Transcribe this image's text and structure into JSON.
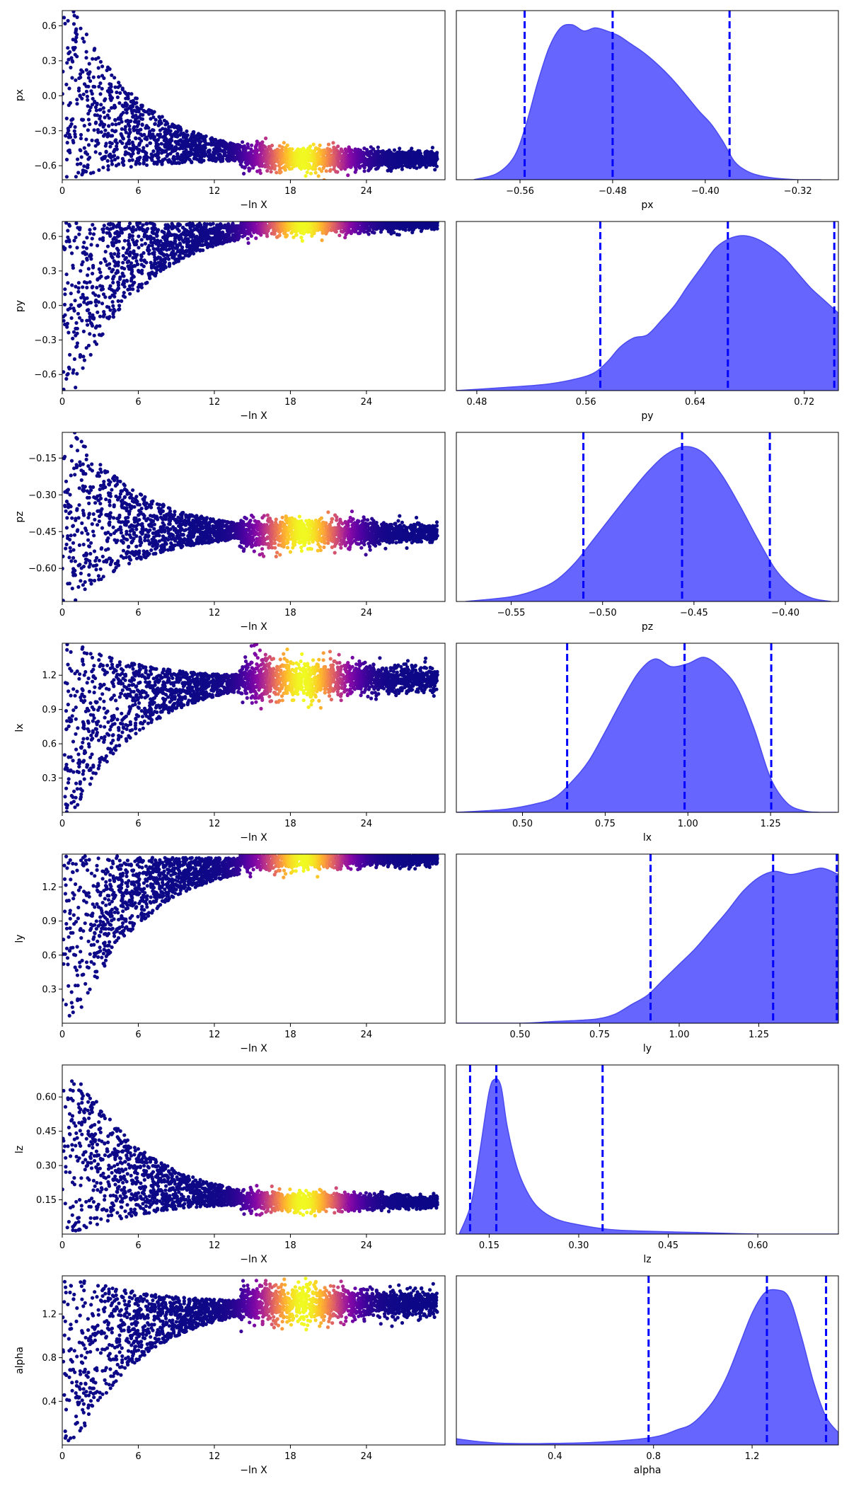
{
  "figure": {
    "trace_xlabel": "−ln X",
    "trace_xticks": [
      "0",
      "6",
      "12",
      "18",
      "24"
    ]
  },
  "colors": {
    "kde_fill": "#6666ff",
    "kde_edge": "#4a4af0",
    "quantile_line": "#0000ff",
    "colormap": [
      "#0d0887",
      "#5302a3",
      "#8b0aa5",
      "#b83289",
      "#db5c68",
      "#f48849",
      "#febd2a",
      "#f0f921"
    ]
  },
  "chart_data": [
    {
      "type": "scatter",
      "param": "px",
      "xlabel": "−ln X",
      "ylabel": "px",
      "xlim": [
        0,
        30.2
      ],
      "ylim": [
        -0.72,
        0.73
      ],
      "xticks": [
        0,
        6,
        12,
        18,
        24
      ],
      "yticks": [
        "0.6",
        "0.3",
        "0.0",
        "−0.3",
        "−0.6"
      ],
      "ytick_values": [
        0.6,
        0.3,
        0.0,
        -0.3,
        -0.6
      ],
      "converge_value": -0.54,
      "converge_spread": 0.05,
      "early_range": [
        -0.72,
        0.73
      ],
      "color_peak_x": 19
    },
    {
      "type": "area",
      "param": "px",
      "xlabel": "px",
      "xlim": [
        -0.615,
        -0.285
      ],
      "xticks": [
        "−0.56",
        "−0.48",
        "−0.40",
        "−0.32"
      ],
      "xtick_values": [
        -0.56,
        -0.48,
        -0.4,
        -0.32
      ],
      "quantiles": [
        -0.556,
        -0.48,
        -0.379
      ],
      "kde_x": [
        -0.6,
        -0.58,
        -0.565,
        -0.555,
        -0.545,
        -0.535,
        -0.525,
        -0.515,
        -0.505,
        -0.495,
        -0.485,
        -0.475,
        -0.465,
        -0.455,
        -0.445,
        -0.435,
        -0.425,
        -0.415,
        -0.405,
        -0.395,
        -0.385,
        -0.375,
        -0.365,
        -0.355,
        -0.34,
        -0.32,
        -0.3
      ],
      "kde_y": [
        0.0,
        0.04,
        0.15,
        0.35,
        0.62,
        0.85,
        0.98,
        1.0,
        0.96,
        0.98,
        0.96,
        0.93,
        0.88,
        0.83,
        0.77,
        0.7,
        0.62,
        0.53,
        0.44,
        0.36,
        0.25,
        0.12,
        0.06,
        0.03,
        0.01,
        0.0,
        0.0
      ]
    },
    {
      "type": "scatter",
      "param": "py",
      "xlabel": "−ln X",
      "ylabel": "py",
      "xlim": [
        0,
        30.2
      ],
      "ylim": [
        -0.74,
        0.73
      ],
      "xticks": [
        0,
        6,
        12,
        18,
        24
      ],
      "yticks": [
        "0.6",
        "0.3",
        "0.0",
        "−0.3",
        "−0.6"
      ],
      "ytick_values": [
        0.6,
        0.3,
        0.0,
        -0.3,
        -0.6
      ],
      "converge_value": 0.71,
      "converge_spread": 0.04,
      "early_range": [
        -0.74,
        0.73
      ],
      "color_peak_x": 19
    },
    {
      "type": "area",
      "param": "py",
      "xlabel": "py",
      "xlim": [
        0.465,
        0.745
      ],
      "xticks": [
        "0.48",
        "0.56",
        "0.64",
        "0.72"
      ],
      "xtick_values": [
        0.48,
        0.56,
        0.64,
        0.72
      ],
      "quantiles": [
        0.5705,
        0.664,
        0.742
      ],
      "kde_x": [
        0.465,
        0.5,
        0.53,
        0.55,
        0.565,
        0.575,
        0.585,
        0.595,
        0.605,
        0.615,
        0.625,
        0.635,
        0.645,
        0.655,
        0.665,
        0.675,
        0.685,
        0.695,
        0.705,
        0.715,
        0.725,
        0.735,
        0.745
      ],
      "kde_y": [
        0.0,
        0.02,
        0.04,
        0.07,
        0.11,
        0.18,
        0.28,
        0.34,
        0.36,
        0.45,
        0.55,
        0.68,
        0.8,
        0.92,
        0.98,
        1.0,
        0.98,
        0.93,
        0.86,
        0.76,
        0.66,
        0.58,
        0.5
      ]
    },
    {
      "type": "scatter",
      "param": "pz",
      "xlabel": "−ln X",
      "ylabel": "pz",
      "xlim": [
        0,
        30.2
      ],
      "ylim": [
        -0.735,
        -0.045
      ],
      "xticks": [
        0,
        6,
        12,
        18,
        24
      ],
      "yticks": [
        "−0.15",
        "−0.30",
        "−0.45",
        "−0.60"
      ],
      "ytick_values": [
        -0.15,
        -0.3,
        -0.45,
        -0.6
      ],
      "converge_value": -0.455,
      "converge_spread": 0.03,
      "early_range": [
        -0.735,
        -0.045
      ],
      "color_peak_x": 19
    },
    {
      "type": "area",
      "param": "pz",
      "xlabel": "pz",
      "xlim": [
        -0.58,
        -0.371
      ],
      "xticks": [
        "−0.55",
        "−0.50",
        "−0.45",
        "−0.40"
      ],
      "xtick_values": [
        -0.55,
        -0.5,
        -0.45,
        -0.4
      ],
      "quantiles": [
        -0.5105,
        -0.4565,
        -0.4085
      ],
      "kde_x": [
        -0.575,
        -0.55,
        -0.535,
        -0.525,
        -0.515,
        -0.505,
        -0.495,
        -0.485,
        -0.475,
        -0.465,
        -0.455,
        -0.445,
        -0.435,
        -0.425,
        -0.415,
        -0.405,
        -0.395,
        -0.385,
        -0.375
      ],
      "kde_y": [
        0.0,
        0.03,
        0.08,
        0.14,
        0.25,
        0.4,
        0.55,
        0.7,
        0.84,
        0.95,
        1.0,
        0.96,
        0.82,
        0.62,
        0.4,
        0.2,
        0.08,
        0.02,
        0.0
      ]
    },
    {
      "type": "scatter",
      "param": "lx",
      "xlabel": "−ln X",
      "ylabel": "lx",
      "xlim": [
        0,
        30.2
      ],
      "ylim": [
        0.0,
        1.48
      ],
      "xticks": [
        0,
        6,
        12,
        18,
        24
      ],
      "yticks": [
        "1.2",
        "0.9",
        "0.6",
        "0.3"
      ],
      "ytick_values": [
        1.2,
        0.9,
        0.6,
        0.3
      ],
      "converge_value": 1.17,
      "converge_spread": 0.08,
      "early_range": [
        0.0,
        1.48
      ],
      "color_peak_x": 19
    },
    {
      "type": "area",
      "param": "lx",
      "xlabel": "lx",
      "xlim": [
        0.3,
        1.455
      ],
      "xticks": [
        "0.50",
        "0.75",
        "1.00",
        "1.25"
      ],
      "xtick_values": [
        0.5,
        0.75,
        1.0,
        1.25
      ],
      "quantiles": [
        0.635,
        0.99,
        1.252
      ],
      "kde_x": [
        0.3,
        0.45,
        0.55,
        0.6,
        0.65,
        0.7,
        0.75,
        0.8,
        0.85,
        0.9,
        0.95,
        1.0,
        1.05,
        1.1,
        1.15,
        1.2,
        1.25,
        1.3,
        1.35,
        1.4,
        1.45
      ],
      "kde_y": [
        0.0,
        0.02,
        0.06,
        0.1,
        0.2,
        0.33,
        0.52,
        0.72,
        0.9,
        0.99,
        0.94,
        0.96,
        1.0,
        0.93,
        0.8,
        0.54,
        0.22,
        0.06,
        0.01,
        0.0,
        0.0
      ]
    },
    {
      "type": "scatter",
      "param": "ly",
      "xlabel": "−ln X",
      "ylabel": "ly",
      "xlim": [
        0,
        30.2
      ],
      "ylim": [
        0.0,
        1.49
      ],
      "xticks": [
        0,
        6,
        12,
        18,
        24
      ],
      "yticks": [
        "1.2",
        "0.9",
        "0.6",
        "0.3"
      ],
      "ytick_values": [
        1.2,
        0.9,
        0.6,
        0.3
      ],
      "converge_value": 1.45,
      "converge_spread": 0.04,
      "early_range": [
        0.0,
        1.49
      ],
      "color_peak_x": 19
    },
    {
      "type": "area",
      "param": "ly",
      "xlabel": "ly",
      "xlim": [
        0.3,
        1.5
      ],
      "xticks": [
        "0.50",
        "0.75",
        "1.00",
        "1.25"
      ],
      "xtick_values": [
        0.5,
        0.75,
        1.0,
        1.25
      ],
      "quantiles": [
        0.91,
        1.295,
        1.495
      ],
      "kde_x": [
        0.3,
        0.5,
        0.6,
        0.7,
        0.75,
        0.8,
        0.85,
        0.9,
        0.95,
        1.0,
        1.05,
        1.1,
        1.15,
        1.2,
        1.25,
        1.3,
        1.35,
        1.4,
        1.45,
        1.5
      ],
      "kde_y": [
        0.0,
        0.0,
        0.01,
        0.02,
        0.03,
        0.06,
        0.12,
        0.18,
        0.28,
        0.38,
        0.48,
        0.6,
        0.72,
        0.85,
        0.94,
        0.98,
        0.96,
        0.98,
        1.0,
        0.96
      ]
    },
    {
      "type": "scatter",
      "param": "lz",
      "xlabel": "−ln X",
      "ylabel": "lz",
      "xlim": [
        0,
        30.2
      ],
      "ylim": [
        0.0,
        0.74
      ],
      "xticks": [
        0,
        6,
        12,
        18,
        24
      ],
      "yticks": [
        "0.60",
        "0.45",
        "0.30",
        "0.15"
      ],
      "ytick_values": [
        0.6,
        0.45,
        0.3,
        0.15
      ],
      "converge_value": 0.14,
      "converge_spread": 0.02,
      "early_range": [
        0.0,
        0.74
      ],
      "color_peak_x": 19
    },
    {
      "type": "area",
      "param": "lz",
      "xlabel": "lz",
      "xlim": [
        0.095,
        0.735
      ],
      "xticks": [
        "0.15",
        "0.30",
        "0.45",
        "0.60"
      ],
      "xtick_values": [
        0.15,
        0.3,
        0.45,
        0.6
      ],
      "quantiles": [
        0.118,
        0.162,
        0.34
      ],
      "kde_x": [
        0.1,
        0.12,
        0.135,
        0.15,
        0.16,
        0.17,
        0.18,
        0.195,
        0.21,
        0.23,
        0.26,
        0.3,
        0.35,
        0.4,
        0.5,
        0.6,
        0.7,
        0.735
      ],
      "kde_y": [
        0.0,
        0.2,
        0.55,
        0.92,
        1.0,
        0.95,
        0.7,
        0.45,
        0.3,
        0.18,
        0.1,
        0.06,
        0.03,
        0.02,
        0.01,
        0.0,
        0.0,
        0.0
      ]
    },
    {
      "type": "scatter",
      "param": "alpha",
      "xlabel": "−ln X",
      "ylabel": "alpha",
      "xlim": [
        0,
        30.2
      ],
      "ylim": [
        0.0,
        1.55
      ],
      "xticks": [
        0,
        6,
        12,
        18,
        24
      ],
      "yticks": [
        "1.2",
        "0.8",
        "0.4"
      ],
      "ytick_values": [
        1.2,
        0.8,
        0.4
      ],
      "converge_value": 1.3,
      "converge_spread": 0.08,
      "early_range": [
        0.0,
        1.55
      ],
      "color_peak_x": 19
    },
    {
      "type": "area",
      "param": "alpha",
      "xlabel": "alpha",
      "xlim": [
        0.0,
        1.55
      ],
      "xticks": [
        "0.4",
        "0.8",
        "1.2"
      ],
      "xtick_values": [
        0.4,
        0.8,
        1.2
      ],
      "quantiles": [
        0.78,
        1.26,
        1.5
      ],
      "kde_x": [
        0.0,
        0.1,
        0.2,
        0.4,
        0.6,
        0.8,
        0.9,
        0.95,
        1.0,
        1.05,
        1.1,
        1.15,
        1.2,
        1.25,
        1.3,
        1.35,
        1.4,
        1.45,
        1.5,
        1.55
      ],
      "kde_y": [
        0.04,
        0.02,
        0.01,
        0.01,
        0.02,
        0.05,
        0.1,
        0.13,
        0.2,
        0.3,
        0.45,
        0.65,
        0.85,
        0.98,
        1.0,
        0.95,
        0.7,
        0.4,
        0.18,
        0.08
      ]
    }
  ]
}
